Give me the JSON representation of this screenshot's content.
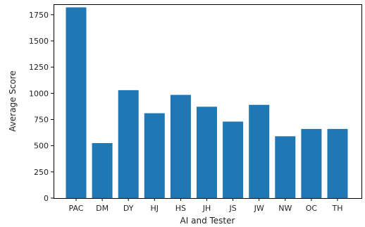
{
  "chart_data": {
    "type": "bar",
    "categories": [
      "PAC",
      "DM",
      "DY",
      "HJ",
      "HS",
      "JH",
      "JS",
      "JW",
      "NW",
      "OC",
      "TH"
    ],
    "values": [
      1820,
      525,
      1030,
      810,
      985,
      872,
      730,
      890,
      590,
      660,
      660
    ],
    "title": "",
    "xlabel": "AI and Tester",
    "ylabel": "Average Score",
    "ylim": [
      0,
      1850
    ],
    "yticks": [
      0,
      250,
      500,
      750,
      1000,
      1250,
      1500,
      1750
    ],
    "grid": false,
    "colors": {
      "bar": "#1f77b4",
      "axis": "#000000"
    }
  }
}
